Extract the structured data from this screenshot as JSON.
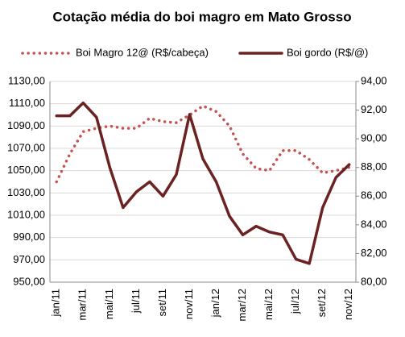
{
  "chart_data": {
    "type": "line",
    "title": "Cotação média do boi magro em Mato Grosso",
    "categories": [
      "jan/11",
      null,
      "mar/11",
      null,
      "mai/11",
      null,
      "jul/11",
      null,
      "set/11",
      null,
      "nov/11",
      null,
      "jan/12",
      null,
      "mar/12",
      null,
      "mai/12",
      null,
      "jul/12",
      null,
      "set/12",
      null,
      "nov/12"
    ],
    "series": [
      {
        "name": "Boi Magro 12@ (R$/cabeça)",
        "color": "#c65252",
        "style": "dotted",
        "values": [
          1040,
          1065,
          1085,
          1088,
          1090,
          1088,
          1088,
          1097,
          1094,
          1093,
          1100,
          1108,
          1103,
          1090,
          1065,
          1052,
          1050,
          1068,
          1068,
          1060,
          1048,
          1050,
          1053
        ]
      },
      {
        "name": "Boi gordo (R$/@)",
        "color": "#6b2222",
        "style": "solid",
        "axis": "y2",
        "values": [
          91.6,
          91.6,
          92.5,
          91.5,
          88,
          85.2,
          86.3,
          87,
          86,
          87.5,
          91.7,
          88.6,
          87,
          84.6,
          83.3,
          83.9,
          83.5,
          83.3,
          81.6,
          81.3,
          85.2,
          87.3,
          88.2
        ]
      }
    ],
    "ylim": [
      950,
      1130
    ],
    "yticks": [
      {
        "value": 950,
        "label": "950,00"
      },
      {
        "value": 970,
        "label": "970,00"
      },
      {
        "value": 990,
        "label": "990,00"
      },
      {
        "value": 1010,
        "label": "1010,00"
      },
      {
        "value": 1030,
        "label": "1030,00"
      },
      {
        "value": 1050,
        "label": "1050,00"
      },
      {
        "value": 1070,
        "label": "1070,00"
      },
      {
        "value": 1090,
        "label": "1090,00"
      },
      {
        "value": 1110,
        "label": "1110,00"
      },
      {
        "value": 1130,
        "label": "1130,00"
      }
    ],
    "y2lim": [
      80,
      94
    ],
    "y2ticks": [
      {
        "value": 80,
        "label": "80,00"
      },
      {
        "value": 82,
        "label": "82,00"
      },
      {
        "value": 84,
        "label": "84,00"
      },
      {
        "value": 86,
        "label": "86,00"
      },
      {
        "value": 88,
        "label": "88,00"
      },
      {
        "value": 90,
        "label": "90,00"
      },
      {
        "value": 92,
        "label": "92,00"
      },
      {
        "value": 94,
        "label": "94,00"
      }
    ],
    "grid": true,
    "legend": "top"
  }
}
